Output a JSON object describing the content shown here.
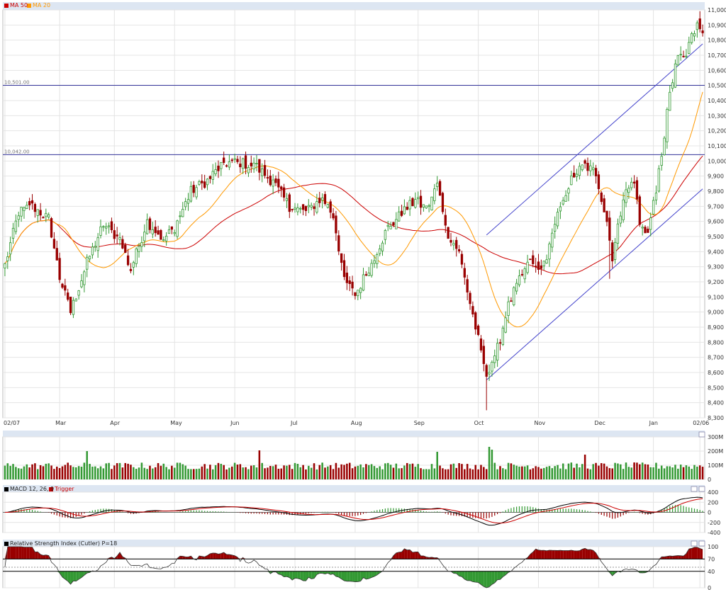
{
  "legend": {
    "ma50": {
      "label": "MA 50",
      "color": "#cc0000"
    },
    "ma20": {
      "label": "MA 20",
      "color": "#ff9900"
    }
  },
  "colors": {
    "up": "#339933",
    "down": "#990000",
    "grid": "#e4e4e4",
    "trend": "#4444cc",
    "hline": "#333399"
  },
  "chart_data": [
    {
      "type": "candlestick",
      "name": "price",
      "ylim": [
        8300,
        11000
      ],
      "yticks": [
        8300,
        8400,
        8500,
        8600,
        8700,
        8800,
        8900,
        9000,
        9100,
        9200,
        9300,
        9400,
        9500,
        9600,
        9700,
        9800,
        9900,
        10000,
        10100,
        10200,
        10300,
        10400,
        10500,
        10600,
        10700,
        10800,
        10900,
        11000
      ],
      "ytick_labels": [
        "8,300",
        "8,400",
        "8,500",
        "8,600",
        "8,700",
        "8,800",
        "8,900",
        "9,000",
        "9,100",
        "9,200",
        "9,300",
        "9,400",
        "9,500",
        "9,600",
        "9,700",
        "9,800",
        "9,900",
        "10,000",
        "10,100",
        "10,200",
        "10,300",
        "10,400",
        "10,500",
        "10,600",
        "10,700",
        "10,800",
        "10,900",
        "11,000"
      ],
      "xticks": [
        "02/07",
        "Mar",
        "Apr",
        "May",
        "Jun",
        "Jul",
        "Aug",
        "Sep",
        "Oct",
        "Nov",
        "Dec",
        "Jan",
        "02/06"
      ],
      "xtick_pos": [
        0,
        20,
        40,
        62,
        84,
        106,
        128,
        151,
        173,
        195,
        217,
        237,
        254
      ],
      "n": 256,
      "keypoints": [
        [
          0,
          9310
        ],
        [
          5,
          9660
        ],
        [
          10,
          9700
        ],
        [
          16,
          9620
        ],
        [
          20,
          9230
        ],
        [
          24,
          9000
        ],
        [
          30,
          9330
        ],
        [
          36,
          9580
        ],
        [
          42,
          9480
        ],
        [
          46,
          9280
        ],
        [
          52,
          9600
        ],
        [
          58,
          9480
        ],
        [
          62,
          9560
        ],
        [
          68,
          9800
        ],
        [
          74,
          9870
        ],
        [
          80,
          9990
        ],
        [
          86,
          9990
        ],
        [
          92,
          9960
        ],
        [
          98,
          9860
        ],
        [
          104,
          9700
        ],
        [
          110,
          9660
        ],
        [
          116,
          9760
        ],
        [
          120,
          9640
        ],
        [
          124,
          9220
        ],
        [
          128,
          9110
        ],
        [
          134,
          9330
        ],
        [
          140,
          9560
        ],
        [
          146,
          9670
        ],
        [
          150,
          9740
        ],
        [
          154,
          9680
        ],
        [
          158,
          9840
        ],
        [
          162,
          9520
        ],
        [
          166,
          9390
        ],
        [
          170,
          9060
        ],
        [
          174,
          8740
        ],
        [
          176,
          8590
        ],
        [
          180,
          8760
        ],
        [
          184,
          9040
        ],
        [
          188,
          9220
        ],
        [
          192,
          9330
        ],
        [
          196,
          9260
        ],
        [
          200,
          9500
        ],
        [
          204,
          9760
        ],
        [
          208,
          9910
        ],
        [
          212,
          9970
        ],
        [
          216,
          9920
        ],
        [
          220,
          9600
        ],
        [
          222,
          9350
        ],
        [
          226,
          9760
        ],
        [
          230,
          9880
        ],
        [
          232,
          9570
        ],
        [
          235,
          9520
        ],
        [
          238,
          9820
        ],
        [
          240,
          10010
        ],
        [
          242,
          10330
        ],
        [
          244,
          10520
        ],
        [
          246,
          10700
        ],
        [
          249,
          10680
        ],
        [
          251,
          10860
        ],
        [
          253,
          10890
        ],
        [
          255,
          10860
        ]
      ],
      "hlines": [
        {
          "value": 10501,
          "label": "10,501.00"
        },
        {
          "value": 10042,
          "label": "10,042.00"
        }
      ],
      "trend_upper": [
        [
          176,
          9510
        ],
        [
          255,
          10775
        ]
      ],
      "trend_lower": [
        [
          176,
          8550
        ],
        [
          255,
          9815
        ]
      ]
    },
    {
      "type": "bar",
      "name": "volume",
      "ylim": [
        0,
        300
      ],
      "yticks": [
        0,
        100,
        200,
        300
      ],
      "ytick_labels": [
        "0",
        "100M",
        "200M",
        "300M"
      ],
      "spikes": [
        [
          30,
          200
        ],
        [
          93,
          205
        ],
        [
          158,
          195
        ],
        [
          177,
          230
        ],
        [
          178,
          210
        ],
        [
          212,
          175
        ]
      ]
    },
    {
      "type": "line",
      "name": "macd",
      "title": "MACD 12, 26, 9",
      "series_labels": [
        "Trigger"
      ],
      "ylim": [
        -400,
        400
      ],
      "yticks": [
        -400,
        -200,
        0,
        200,
        400
      ],
      "ytick_labels": [
        "-400",
        "-200",
        "0",
        "200",
        "400"
      ]
    },
    {
      "type": "area",
      "name": "rsi",
      "title": "Relative Strength Index (Cutler) P=18",
      "ylim": [
        0,
        100
      ],
      "yticks": [
        0,
        40,
        70,
        100
      ],
      "ytick_labels": [
        "0",
        "40",
        "70",
        "100"
      ],
      "bands": [
        70,
        40
      ]
    }
  ]
}
